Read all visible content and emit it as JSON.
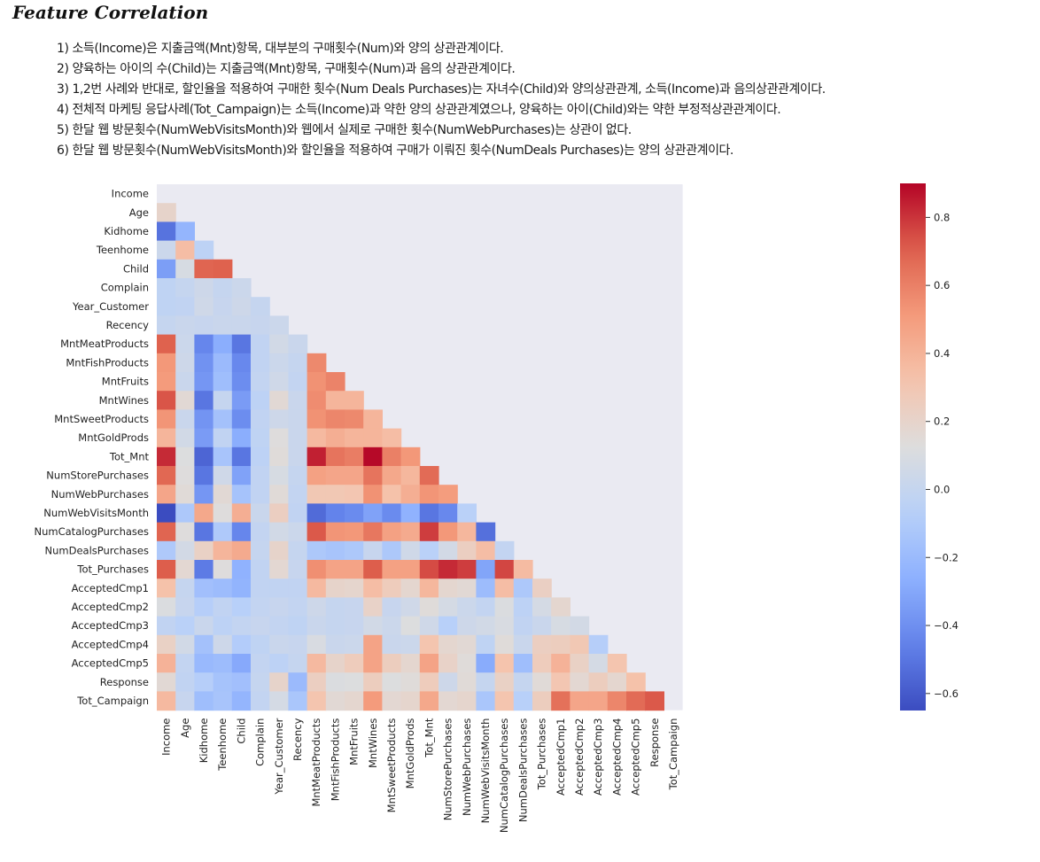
{
  "heading": "Feature Correlation",
  "notes": [
    "1) 소득(Income)은 지출금액(Mnt)항목, 대부분의 구매횟수(Num)와 양의 상관관계이다.",
    "2) 양육하는 아이의 수(Child)는 지출금액(Mnt)항목, 구매횟수(Num)과 음의 상관관계이다.",
    "3) 1,2번 사례와 반대로, 할인율을 적용하여 구매한 횟수(Num Deals Purchases)는 자녀수(Child)와 양의상관관계, 소득(Income)과 음의상관관계이다.",
    "4) 전체적 마케팅 응답사례(Tot_Campaign)는 소득(Income)과 약한 양의 상관관계였으나, 양육하는 아이(Child)와는 약한 부정적상관관계이다.",
    "5) 한달 웹 방문횟수(NumWebVisitsMonth)와 웹에서 실제로 구매한 횟수(NumWebPurchases)는 상관이 없다.",
    "6) 한달 웹 방문횟수(NumWebVisitsMonth)와 할인율을 적용하여 구매가 이뤄진 횟수(NumDeals Purchases)는 양의 상관관계이다."
  ],
  "chart_data": {
    "type": "heatmap",
    "colormap": "coolwarm",
    "mask": "upper-triangle-including-diagonal",
    "colorbar": {
      "vmin": -0.65,
      "vmax": 0.9,
      "ticks": [
        -0.6,
        -0.4,
        -0.2,
        0.0,
        0.2,
        0.4,
        0.6,
        0.8
      ],
      "tick_labels": [
        "−0.6",
        "−0.4",
        "−0.2",
        "0.0",
        "0.2",
        "0.4",
        "0.6",
        "0.8"
      ]
    },
    "background": "#eaeaf2",
    "labels": [
      "Income",
      "Age",
      "Kidhome",
      "Teenhome",
      "Child",
      "Complain",
      "Year_Customer",
      "Recency",
      "MntMeatProducts",
      "MntFishProducts",
      "MntFruits",
      "MntWines",
      "MntSweetProducts",
      "MntGoldProds",
      "Tot_Mnt",
      "NumStorePurchases",
      "NumWebPurchases",
      "NumWebVisitsMonth",
      "NumCatalogPurchases",
      "NumDealsPurchases",
      "Tot_Purchases",
      "AcceptedCmp1",
      "AcceptedCmp2",
      "AcceptedCmp3",
      "AcceptedCmp4",
      "AcceptedCmp5",
      "Response",
      "Tot_Campaign"
    ],
    "rows": [
      [],
      [
        0.2
      ],
      [
        -0.51,
        -0.23
      ],
      [
        0.03,
        0.35,
        -0.04
      ],
      [
        -0.34,
        0.09,
        0.69,
        0.7
      ],
      [
        -0.03,
        0.0,
        0.04,
        0.0,
        0.03
      ],
      [
        -0.03,
        -0.02,
        0.05,
        0.01,
        0.04,
        0.0
      ],
      [
        0.0,
        0.02,
        0.01,
        0.02,
        0.02,
        0.01,
        0.03
      ],
      [
        0.7,
        0.03,
        -0.44,
        -0.27,
        -0.5,
        -0.02,
        0.06,
        0.02
      ],
      [
        0.52,
        0.04,
        -0.39,
        -0.2,
        -0.43,
        -0.02,
        0.03,
        0.0,
        0.57
      ],
      [
        0.51,
        0.02,
        -0.37,
        -0.18,
        -0.41,
        -0.01,
        0.05,
        -0.01,
        0.54,
        0.59
      ],
      [
        0.73,
        0.16,
        -0.5,
        0.0,
        -0.35,
        -0.04,
        0.16,
        0.02,
        0.56,
        0.39,
        0.39
      ],
      [
        0.53,
        0.02,
        -0.38,
        -0.16,
        -0.41,
        -0.02,
        0.04,
        0.02,
        0.54,
        0.58,
        0.57,
        0.39
      ],
      [
        0.39,
        0.06,
        -0.35,
        -0.02,
        -0.27,
        -0.03,
        0.13,
        0.02,
        0.37,
        0.42,
        0.39,
        0.39,
        0.35
      ],
      [
        0.82,
        0.12,
        -0.56,
        -0.14,
        -0.5,
        -0.04,
        0.14,
        0.02,
        0.84,
        0.64,
        0.61,
        0.89,
        0.6,
        0.52
      ],
      [
        0.68,
        0.13,
        -0.5,
        0.05,
        -0.32,
        -0.02,
        0.09,
        0.0,
        0.48,
        0.46,
        0.46,
        0.64,
        0.45,
        0.38,
        0.67
      ],
      [
        0.46,
        0.15,
        -0.37,
        0.16,
        -0.15,
        -0.02,
        0.15,
        -0.01,
        0.29,
        0.29,
        0.3,
        0.54,
        0.33,
        0.42,
        0.53,
        0.5
      ],
      [
        -0.65,
        -0.12,
        0.45,
        0.13,
        0.42,
        0.02,
        0.24,
        -0.02,
        -0.54,
        -0.45,
        -0.42,
        -0.32,
        -0.42,
        -0.25,
        -0.5,
        -0.43,
        -0.06
      ],
      [
        0.69,
        0.13,
        -0.5,
        -0.11,
        -0.44,
        -0.01,
        0.06,
        0.03,
        0.72,
        0.53,
        0.52,
        0.63,
        0.48,
        0.44,
        0.78,
        0.52,
        0.38,
        -0.52
      ],
      [
        -0.11,
        0.07,
        0.22,
        0.39,
        0.44,
        0.0,
        0.2,
        0.0,
        -0.12,
        -0.14,
        -0.12,
        0.01,
        -0.12,
        0.05,
        -0.06,
        0.07,
        0.24,
        0.35,
        -0.01
      ],
      [
        0.71,
        0.17,
        -0.48,
        0.13,
        -0.25,
        -0.02,
        0.17,
        0.01,
        0.55,
        0.47,
        0.47,
        0.71,
        0.48,
        0.48,
        0.75,
        0.82,
        0.78,
        -0.31,
        0.76,
        0.36
      ],
      [
        0.33,
        0.0,
        -0.17,
        -0.19,
        -0.24,
        -0.02,
        -0.02,
        -0.02,
        0.37,
        0.2,
        0.19,
        0.35,
        0.26,
        0.18,
        0.38,
        0.18,
        0.16,
        -0.19,
        0.35,
        -0.12,
        0.23
      ],
      [
        0.11,
        0.01,
        -0.08,
        -0.02,
        -0.07,
        -0.01,
        0.01,
        -0.01,
        0.04,
        0.0,
        0.01,
        0.21,
        0.01,
        0.05,
        0.14,
        0.08,
        0.03,
        -0.01,
        0.11,
        -0.04,
        0.08,
        0.18
      ],
      [
        -0.02,
        -0.06,
        0.02,
        -0.04,
        -0.01,
        0.01,
        -0.01,
        -0.03,
        0.02,
        0.0,
        0.01,
        0.06,
        0.03,
        0.12,
        0.05,
        -0.07,
        0.04,
        0.06,
        0.1,
        -0.02,
        0.02,
        0.09,
        0.07
      ],
      [
        0.22,
        0.06,
        -0.16,
        0.04,
        -0.09,
        -0.03,
        0.02,
        0.01,
        0.1,
        0.02,
        0.03,
        0.47,
        0.02,
        0.03,
        0.31,
        0.18,
        0.16,
        -0.03,
        0.14,
        0.02,
        0.24,
        0.25,
        0.29,
        -0.08
      ],
      [
        0.4,
        -0.01,
        -0.21,
        -0.19,
        -0.29,
        -0.01,
        -0.04,
        0.0,
        0.37,
        0.2,
        0.26,
        0.47,
        0.25,
        0.18,
        0.47,
        0.21,
        0.14,
        -0.28,
        0.32,
        -0.18,
        0.26,
        0.4,
        0.22,
        0.08,
        0.31
      ],
      [
        0.16,
        -0.02,
        -0.08,
        -0.15,
        -0.17,
        0.0,
        0.2,
        -0.2,
        0.24,
        0.11,
        0.12,
        0.25,
        0.12,
        0.14,
        0.26,
        0.04,
        0.15,
        0.0,
        0.22,
        0.0,
        0.15,
        0.3,
        0.17,
        0.25,
        0.18,
        0.33
      ],
      [
        0.37,
        0.01,
        -0.18,
        -0.14,
        -0.23,
        -0.01,
        0.08,
        -0.13,
        0.31,
        0.16,
        0.18,
        0.51,
        0.17,
        0.19,
        0.45,
        0.17,
        0.19,
        -0.13,
        0.31,
        -0.07,
        0.25,
        0.65,
        0.46,
        0.46,
        0.58,
        0.67,
        0.72
      ]
    ]
  }
}
